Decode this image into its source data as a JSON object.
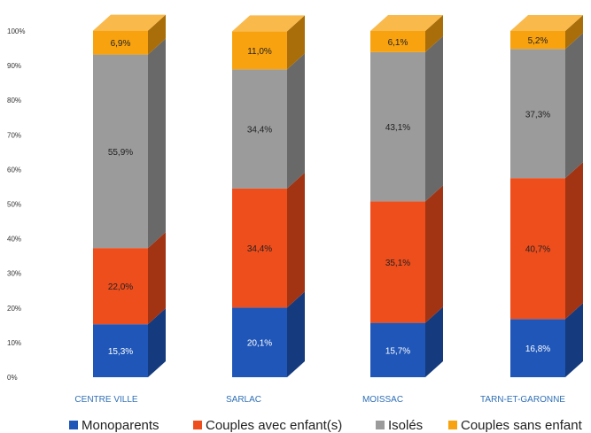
{
  "chart_data": {
    "type": "bar",
    "stacked": true,
    "three_d": true,
    "percent_scale": true,
    "categories": [
      "CENTRE VILLE",
      "SARLAC",
      "MOISSAC",
      "TARN-ET-GARONNE"
    ],
    "series": [
      {
        "name": "Monoparents",
        "color": "#1f56b8",
        "values": [
          15.3,
          20.1,
          15.7,
          16.8
        ],
        "labels": [
          "15,3%",
          "20,1%",
          "15,7%",
          "16,8%"
        ]
      },
      {
        "name": "Couples avec enfant(s)",
        "color": "#ee4d1c",
        "values": [
          22.0,
          34.4,
          35.1,
          40.7
        ],
        "labels": [
          "22,0%",
          "34,4%",
          "35,1%",
          "40,7%"
        ]
      },
      {
        "name": "Isolés",
        "color": "#9b9b9b",
        "values": [
          55.9,
          34.4,
          43.1,
          37.3
        ],
        "labels": [
          "55,9%",
          "34,4%",
          "43,1%",
          "37,3%"
        ]
      },
      {
        "name": "Couples sans enfant",
        "color": "#f8a20f",
        "values": [
          6.9,
          11.0,
          6.1,
          5.2
        ],
        "labels": [
          "6,9%",
          "11,0%",
          "6,1%",
          "5,2%"
        ]
      }
    ],
    "yticks": [
      "0%",
      "10%",
      "20%",
      "30%",
      "40%",
      "50%",
      "60%",
      "70%",
      "80%",
      "90%",
      "100%"
    ],
    "ylim": [
      0,
      100
    ],
    "legend_position": "bottom",
    "grid": false
  }
}
